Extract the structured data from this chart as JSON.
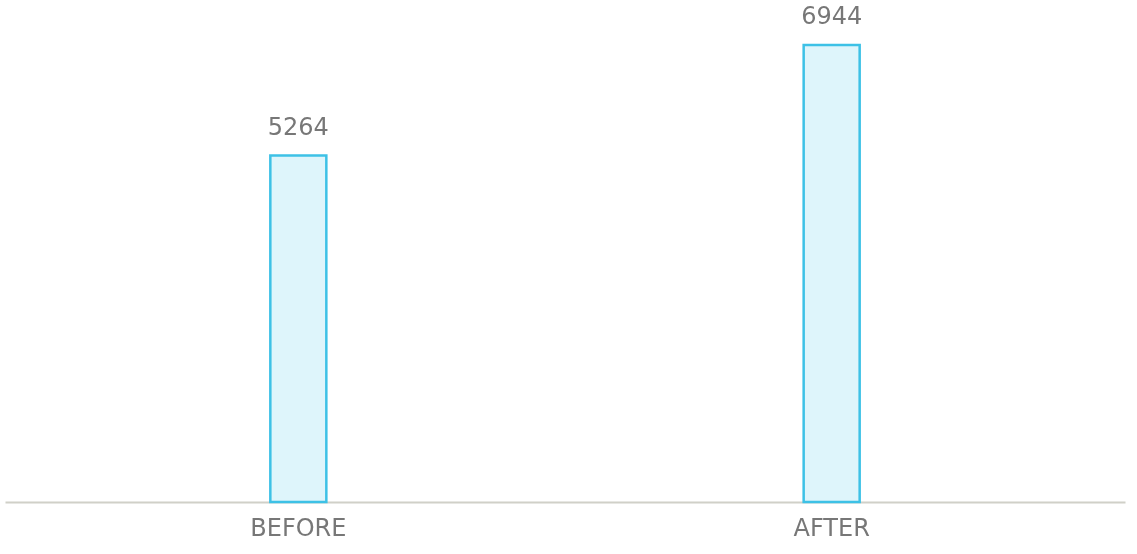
{
  "chart_data": {
    "type": "bar",
    "categories": [
      "BEFORE",
      "AFTER"
    ],
    "values": [
      5264,
      6944
    ],
    "color": "#3dc1e6",
    "data_labels": true
  }
}
